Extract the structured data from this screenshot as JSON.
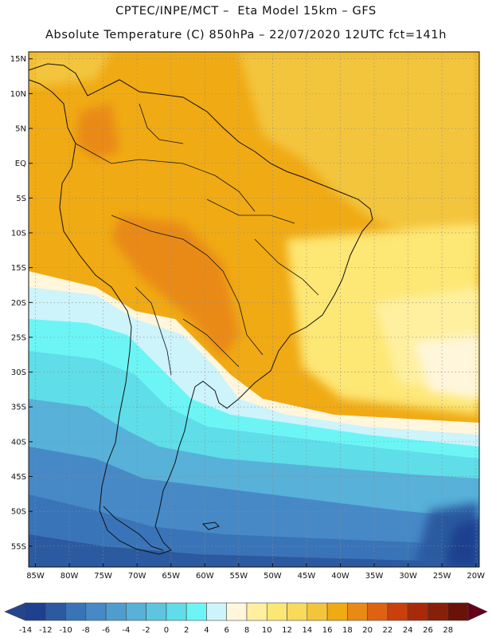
{
  "header": {
    "line1": "CPTEC/INPE/MCT –  Eta Model 15km – GFS",
    "line2": "Absolute Temperature (C) 850hPa – 22/07/2020 12UTC fct=141h"
  },
  "map": {
    "lat_labels": [
      "15N",
      "10N",
      "5N",
      "EQ",
      "5S",
      "10S",
      "15S",
      "20S",
      "25S",
      "30S",
      "35S",
      "40S",
      "45S",
      "50S",
      "55S"
    ],
    "lon_labels": [
      "85W",
      "80W",
      "75W",
      "70W",
      "65W",
      "60W",
      "55W",
      "50W",
      "45W",
      "40W",
      "35W",
      "30W",
      "25W",
      "20W"
    ],
    "extent": {
      "lon_min": -86,
      "lon_max": -19.5,
      "lat_min": -58,
      "lat_max": 16
    }
  },
  "colorbar": {
    "labels": [
      "-14",
      "-12",
      "-10",
      "-8",
      "-6",
      "-4",
      "-2",
      "0",
      "2",
      "4",
      "6",
      "8",
      "10",
      "12",
      "14",
      "16",
      "18",
      "20",
      "22",
      "24",
      "26",
      "28"
    ],
    "colors": [
      "#1f3f8f",
      "#2c5aa0",
      "#3a74b8",
      "#4789c6",
      "#4f9dcf",
      "#57b1d9",
      "#5cc6e0",
      "#5fdde8",
      "#6df5f5",
      "#cdf3fb",
      "#fff6dc",
      "#fff0a0",
      "#fde774",
      "#f8da5c",
      "#f3c53c",
      "#f0aa14",
      "#e98a14",
      "#df6212",
      "#c9400d",
      "#a92a0b",
      "#872009",
      "#6a1208"
    ],
    "under_color": "#24448e",
    "over_color": "#66001a"
  },
  "colors": {
    "tropical": "#f0aa14",
    "warm": "#f3c53c",
    "hot": "#e98a14",
    "cool_cyan": "#5fdde8",
    "cold": "#3a74b8",
    "very_cold": "#2c5aa0"
  }
}
